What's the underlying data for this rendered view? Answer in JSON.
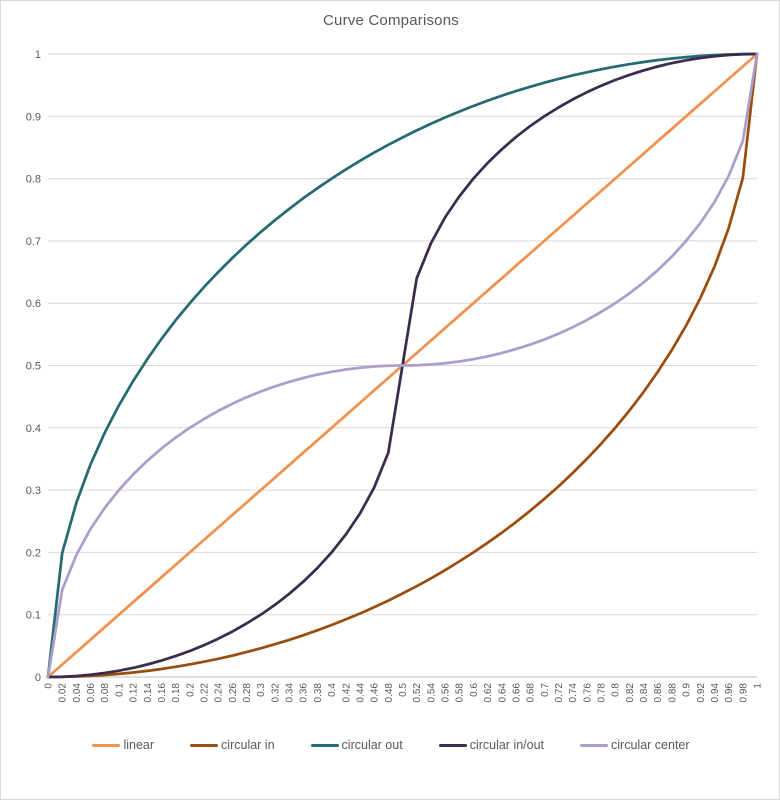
{
  "title": "Curve Comparisons",
  "palette": {
    "grid": "#D9D9D9",
    "axis_line": "#BFBFBF",
    "text": "#595959",
    "background": "#FFFFFF",
    "border": "#D9D9D9"
  },
  "legend": {
    "position": "bottom"
  },
  "chart_data": {
    "type": "line",
    "title": "Curve Comparisons",
    "xlabel": "",
    "ylabel": "",
    "xlim": [
      0,
      1
    ],
    "ylim": [
      0,
      1
    ],
    "grid": "horizontal-only",
    "legend_position": "bottom",
    "x_tick_labels": [
      "0",
      "0.02",
      "0.04",
      "0.06",
      "0.08",
      "0.1",
      "0.12",
      "0.14",
      "0.16",
      "0.18",
      "0.2",
      "0.22",
      "0.24",
      "0.26",
      "0.28",
      "0.3",
      "0.32",
      "0.34",
      "0.36",
      "0.38",
      "0.4",
      "0.42",
      "0.44",
      "0.46",
      "0.48",
      "0.5",
      "0.52",
      "0.54",
      "0.56",
      "0.58",
      "0.6",
      "0.62",
      "0.64",
      "0.66",
      "0.68",
      "0.7",
      "0.72",
      "0.74",
      "0.76",
      "0.78",
      "0.8",
      "0.82",
      "0.84",
      "0.86",
      "0.88",
      "0.9",
      "0.92",
      "0.94",
      "0.96",
      "0.98",
      "1"
    ],
    "y_tick_labels": [
      "0",
      "0.1",
      "0.2",
      "0.3",
      "0.4",
      "0.5",
      "0.6",
      "0.7",
      "0.8",
      "0.9",
      "1"
    ],
    "x": [
      0,
      0.02,
      0.04,
      0.06,
      0.08,
      0.1,
      0.12,
      0.14,
      0.16,
      0.18,
      0.2,
      0.22,
      0.24,
      0.26,
      0.28,
      0.3,
      0.32,
      0.34,
      0.36,
      0.38,
      0.4,
      0.42,
      0.44,
      0.46,
      0.48,
      0.5,
      0.52,
      0.54,
      0.56,
      0.58,
      0.6,
      0.62,
      0.64,
      0.66,
      0.68,
      0.7,
      0.72,
      0.74,
      0.76,
      0.78,
      0.8,
      0.82,
      0.84,
      0.86,
      0.88,
      0.9,
      0.92,
      0.94,
      0.96,
      0.98,
      1
    ],
    "series": [
      {
        "name": "linear",
        "color": "#F0914E",
        "values": [
          0,
          0.02,
          0.04,
          0.06,
          0.08,
          0.1,
          0.12,
          0.14,
          0.16,
          0.18,
          0.2,
          0.22,
          0.24,
          0.26,
          0.28,
          0.3,
          0.32,
          0.34,
          0.36,
          0.38,
          0.4,
          0.42,
          0.44,
          0.46,
          0.48,
          0.5,
          0.52,
          0.54,
          0.56,
          0.58,
          0.6,
          0.62,
          0.64,
          0.66,
          0.68,
          0.7,
          0.72,
          0.74,
          0.76,
          0.78,
          0.8,
          0.82,
          0.84,
          0.86,
          0.88,
          0.9,
          0.92,
          0.94,
          0.96,
          0.98,
          1
        ]
      },
      {
        "name": "circular in",
        "color": "#9A4D0E",
        "values": [
          0,
          0.0002,
          0.0008,
          0.0018,
          0.0032,
          0.005,
          0.0072,
          0.0098,
          0.0129,
          0.0163,
          0.0202,
          0.0245,
          0.0292,
          0.0344,
          0.04,
          0.0461,
          0.0526,
          0.0596,
          0.067,
          0.075,
          0.0835,
          0.0925,
          0.102,
          0.1121,
          0.1227,
          0.134,
          0.1458,
          0.1583,
          0.1715,
          0.1854,
          0.2,
          0.2154,
          0.2316,
          0.2487,
          0.2668,
          0.2859,
          0.306,
          0.3274,
          0.3501,
          0.3742,
          0.4,
          0.4276,
          0.4574,
          0.4897,
          0.525,
          0.5641,
          0.6081,
          0.6588,
          0.72,
          0.801,
          1
        ]
      },
      {
        "name": "circular out",
        "color": "#266A73",
        "values": [
          0,
          0.199,
          0.28,
          0.3412,
          0.3919,
          0.4359,
          0.475,
          0.5103,
          0.5426,
          0.5726,
          0.6,
          0.6258,
          0.6499,
          0.6726,
          0.694,
          0.7141,
          0.7332,
          0.7512,
          0.7684,
          0.7846,
          0.8,
          0.8146,
          0.8285,
          0.8417,
          0.8542,
          0.866,
          0.8773,
          0.8879,
          0.898,
          0.9075,
          0.9165,
          0.925,
          0.933,
          0.9405,
          0.9474,
          0.9539,
          0.96,
          0.9656,
          0.9707,
          0.9755,
          0.9798,
          0.9837,
          0.9871,
          0.9902,
          0.9928,
          0.995,
          0.9968,
          0.9982,
          0.9992,
          0.9998,
          1
        ]
      },
      {
        "name": "circular in/out",
        "color": "#3A2C4F",
        "values": [
          0,
          0.0004,
          0.0016,
          0.0036,
          0.0064,
          0.0101,
          0.0146,
          0.02,
          0.0263,
          0.0335,
          0.0417,
          0.051,
          0.0614,
          0.0729,
          0.0858,
          0.1,
          0.1158,
          0.1334,
          0.153,
          0.175,
          0.2,
          0.2287,
          0.2625,
          0.304,
          0.36,
          0.5,
          0.64,
          0.696,
          0.7375,
          0.7713,
          0.8,
          0.825,
          0.847,
          0.8666,
          0.8842,
          0.9,
          0.9142,
          0.9271,
          0.9386,
          0.949,
          0.9583,
          0.9665,
          0.9737,
          0.98,
          0.9854,
          0.9899,
          0.9936,
          0.9964,
          0.9984,
          0.9996,
          1
        ]
      },
      {
        "name": "circular center",
        "color": "#AC9DCB",
        "values": [
          0,
          0.14,
          0.196,
          0.2375,
          0.2713,
          0.3,
          0.325,
          0.347,
          0.3666,
          0.3842,
          0.4,
          0.4142,
          0.4271,
          0.4386,
          0.449,
          0.4583,
          0.4665,
          0.4737,
          0.48,
          0.4854,
          0.4899,
          0.4936,
          0.4964,
          0.4984,
          0.4996,
          0.5,
          0.5004,
          0.5016,
          0.5036,
          0.5064,
          0.5101,
          0.5146,
          0.52,
          0.5263,
          0.5335,
          0.5417,
          0.551,
          0.5614,
          0.5729,
          0.5858,
          0.6,
          0.6158,
          0.6334,
          0.653,
          0.675,
          0.7,
          0.7287,
          0.7625,
          0.804,
          0.86,
          1
        ]
      }
    ]
  }
}
